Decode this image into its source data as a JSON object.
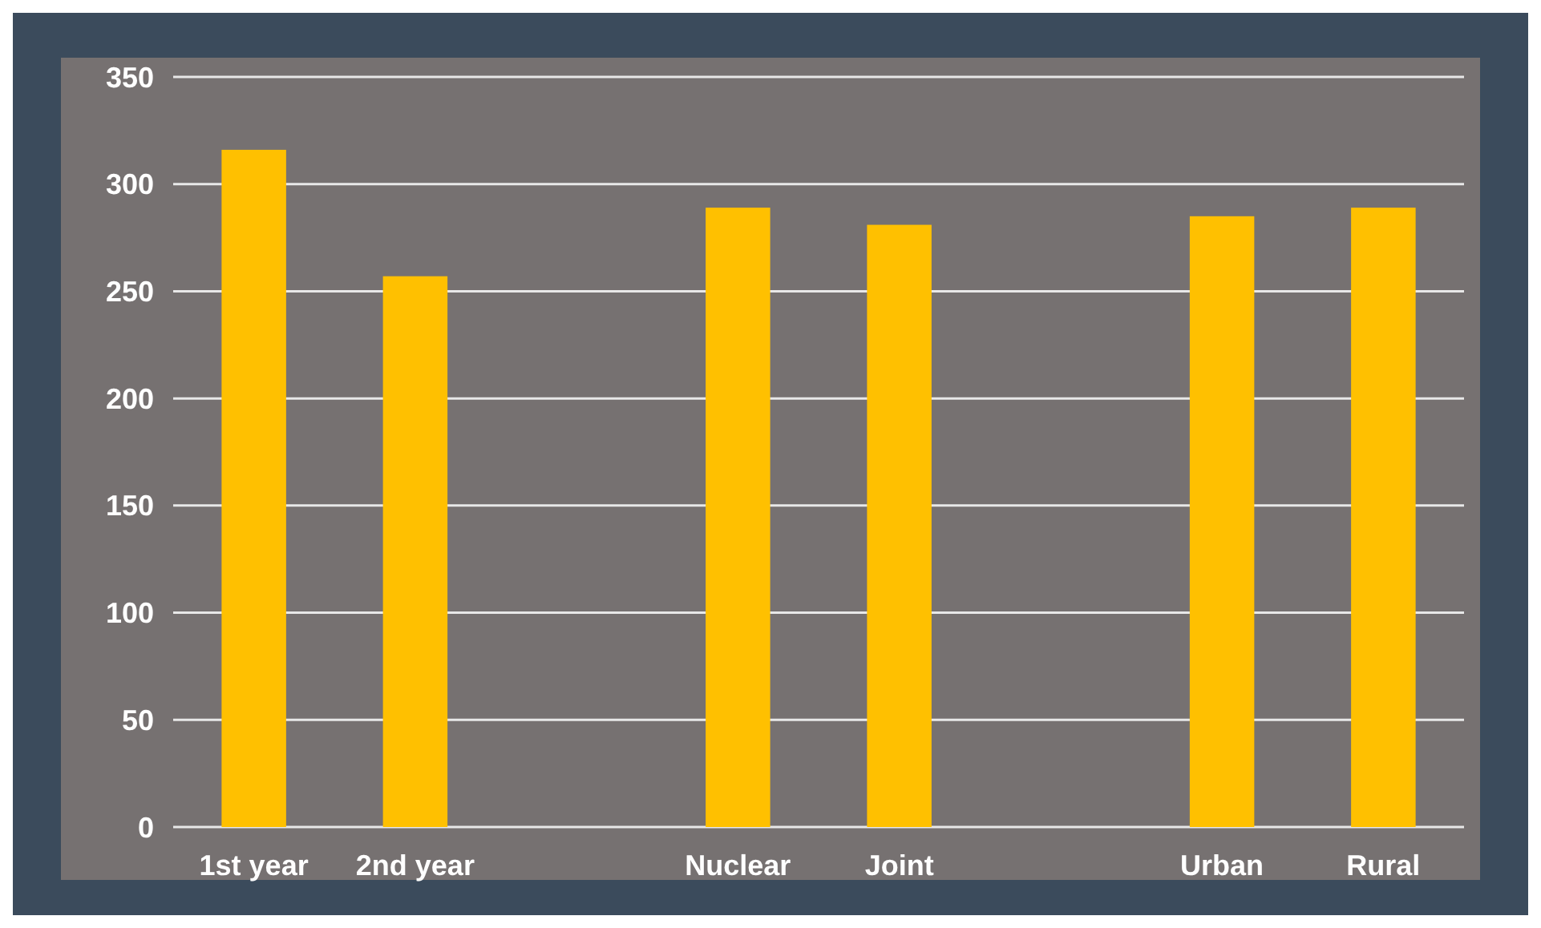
{
  "chart_data": {
    "type": "bar",
    "categories": [
      "1st year",
      "2nd year",
      null,
      "Nuclear",
      "Joint",
      null,
      "Urban",
      "Rural"
    ],
    "values": [
      316,
      257,
      null,
      289,
      281,
      null,
      285,
      289
    ],
    "color": "#ffc000",
    "ylim": [
      0,
      350
    ],
    "yticks": [
      0,
      50,
      100,
      150,
      200,
      250,
      300,
      350
    ],
    "grid": "y"
  }
}
